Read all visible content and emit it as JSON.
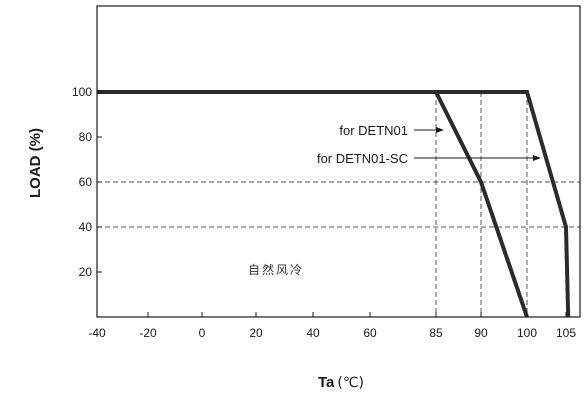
{
  "chart_data": {
    "type": "line",
    "xlabel_main": "Ta",
    "xlabel_unit": "(℃)",
    "ylabel": "LOAD (%)",
    "xlim": [
      -40,
      110
    ],
    "ylim": [
      0,
      130
    ],
    "x_ticks": [
      -40,
      -20,
      0,
      20,
      40,
      60,
      85,
      90,
      100,
      105
    ],
    "y_ticks": [
      20,
      40,
      60,
      80,
      100
    ],
    "grid": false,
    "series": [
      {
        "name": "for DETN01",
        "points": [
          [
            -40,
            100
          ],
          [
            85,
            100
          ],
          [
            90,
            60
          ],
          [
            100,
            0
          ]
        ]
      },
      {
        "name": "for DETN01-SC",
        "points": [
          [
            -40,
            100
          ],
          [
            100,
            100
          ],
          [
            105,
            40
          ],
          [
            105.8,
            0
          ]
        ]
      }
    ],
    "reference_lines": {
      "horizontal": [
        60,
        40
      ],
      "vertical": [
        85,
        90,
        100
      ]
    },
    "annotation": "自然风冷",
    "colors": {
      "line": "#2b2b2b",
      "axis": "#1a1a1a",
      "dashed": "#555555"
    }
  }
}
